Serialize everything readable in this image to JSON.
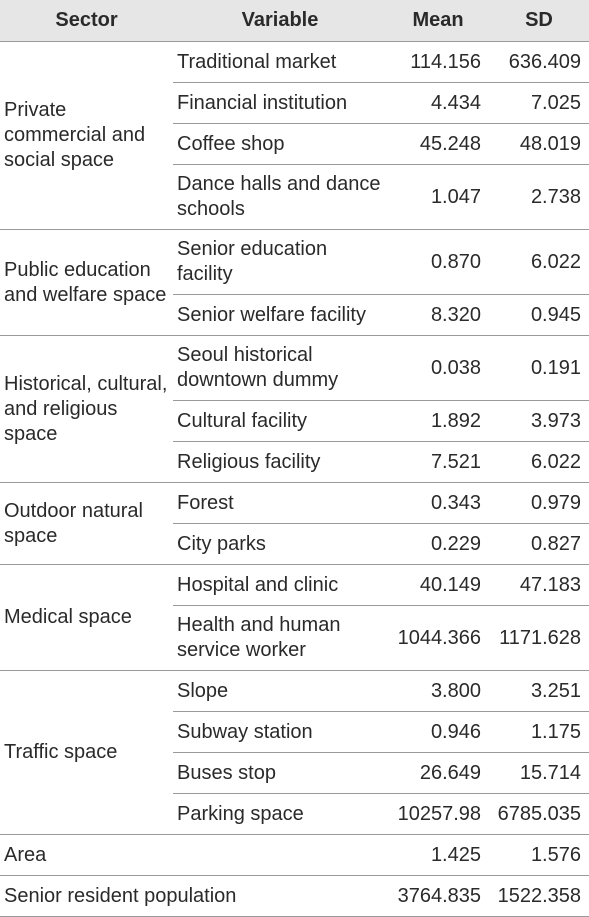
{
  "header": {
    "sector": "Sector",
    "variable": "Variable",
    "mean": "Mean",
    "sd": "SD"
  },
  "groups": [
    {
      "sector": "Private commercial and social space",
      "rows": [
        {
          "variable": "Traditional market",
          "mean": "114.156",
          "sd": "636.409"
        },
        {
          "variable": "Financial institution",
          "mean": "4.434",
          "sd": "7.025"
        },
        {
          "variable": "Coffee shop",
          "mean": "45.248",
          "sd": "48.019"
        },
        {
          "variable": "Dance halls and dance schools",
          "mean": "1.047",
          "sd": "2.738"
        }
      ]
    },
    {
      "sector": "Public education and welfare space",
      "rows": [
        {
          "variable": "Senior education facility",
          "mean": "0.870",
          "sd": "6.022"
        },
        {
          "variable": "Senior welfare facility",
          "mean": "8.320",
          "sd": "0.945"
        }
      ]
    },
    {
      "sector": "Historical, cultural, and religious space",
      "rows": [
        {
          "variable": "Seoul historical downtown dummy",
          "mean": "0.038",
          "sd": "0.191"
        },
        {
          "variable": "Cultural facility",
          "mean": "1.892",
          "sd": "3.973"
        },
        {
          "variable": "Religious facility",
          "mean": "7.521",
          "sd": "6.022"
        }
      ]
    },
    {
      "sector": "Outdoor natural space",
      "rows": [
        {
          "variable": "Forest",
          "mean": "0.343",
          "sd": "0.979"
        },
        {
          "variable": "City parks",
          "mean": "0.229",
          "sd": "0.827"
        }
      ]
    },
    {
      "sector": "Medical space",
      "rows": [
        {
          "variable": "Hospital and clinic",
          "mean": "40.149",
          "sd": "47.183"
        },
        {
          "variable": "Health and human service worker",
          "mean": "1044.366",
          "sd": "1171.628"
        }
      ]
    },
    {
      "sector": "Traffic space",
      "rows": [
        {
          "variable": "Slope",
          "mean": "3.800",
          "sd": "3.251"
        },
        {
          "variable": "Subway station",
          "mean": "0.946",
          "sd": "1.175"
        },
        {
          "variable": "Buses stop",
          "mean": "26.649",
          "sd": "15.714"
        },
        {
          "variable": "Parking space",
          "mean": "10257.98",
          "sd": "6785.035"
        }
      ]
    }
  ],
  "extra": [
    {
      "label": "Area",
      "mean": "1.425",
      "sd": "1.576"
    },
    {
      "label": "Senior resident population",
      "mean": "3764.835",
      "sd": "1522.358"
    }
  ]
}
